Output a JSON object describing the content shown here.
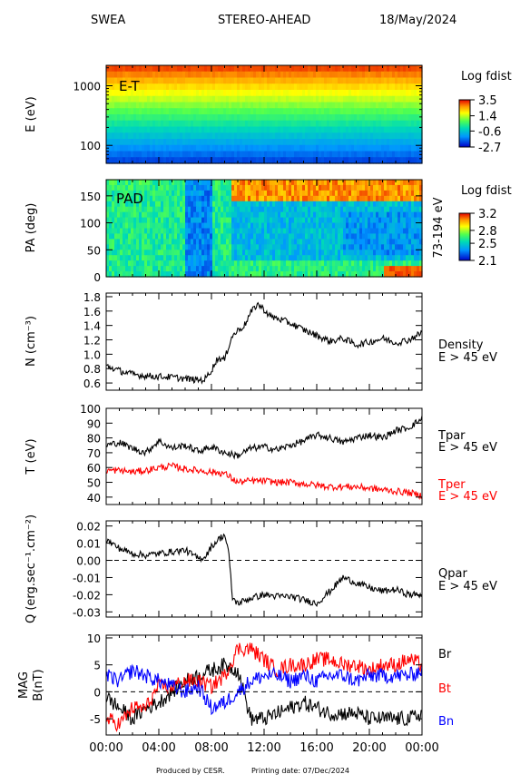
{
  "header": {
    "instrument": "SWEA",
    "spacecraft": "STEREO-AHEAD",
    "date": "18/May/2024"
  },
  "footer": {
    "produced_by": "Produced by CESR.",
    "printing_date": "Printing date: 07/Dec/2024"
  },
  "colors": {
    "black": "#000000",
    "red": "#ff0000",
    "blue": "#0000ff"
  },
  "time_axis": {
    "range_hours": [
      0,
      24
    ],
    "tick_labels": [
      "00:00",
      "04:00",
      "08:00",
      "12:00",
      "16:00",
      "20:00",
      "00:00"
    ]
  },
  "chart_data": [
    {
      "type": "heatmap",
      "panel_label": "E-T",
      "ylabel": "E (eV)",
      "yscale": "log",
      "ylim": [
        50,
        2200
      ],
      "y_tick_labels": [
        "1000",
        "100"
      ],
      "colorbar_title": "Log fdist",
      "colorbar_ticks": [
        "3.5",
        "1.4",
        "-0.6",
        "-2.7"
      ],
      "colorbar_range": [
        -2.7,
        3.5
      ]
    },
    {
      "type": "heatmap",
      "panel_label": "PAD",
      "ylabel": "PA (deg)",
      "ylim": [
        0,
        180
      ],
      "y_tick_labels": [
        "150",
        "100",
        "50",
        "0"
      ],
      "right_label": "73-194 eV",
      "colorbar_title": "Log fdist",
      "colorbar_ticks": [
        "3.2",
        "2.8",
        "2.5",
        "2.1"
      ],
      "colorbar_range": [
        2.1,
        3.2
      ]
    },
    {
      "type": "line",
      "ylabel": "N (cm⁻³)",
      "ylim": [
        0.5,
        1.85
      ],
      "y_tick_labels": [
        "1.8",
        "1.6",
        "1.4",
        "1.2",
        "1.0",
        "0.8",
        "0.6"
      ],
      "series": [
        {
          "name": "Density",
          "sublabel": "E > 45 eV",
          "color": "#000000",
          "x": [
            0,
            1,
            2,
            3,
            4,
            5,
            6,
            7,
            7.5,
            8,
            8.5,
            9,
            9.5,
            10,
            10.5,
            11,
            11.5,
            12,
            12.5,
            13,
            14,
            15,
            16,
            17,
            18,
            19,
            20,
            21,
            22,
            23,
            24
          ],
          "y": [
            0.84,
            0.77,
            0.72,
            0.7,
            0.69,
            0.68,
            0.66,
            0.64,
            0.65,
            0.78,
            0.95,
            0.92,
            1.23,
            1.33,
            1.4,
            1.58,
            1.7,
            1.62,
            1.52,
            1.5,
            1.43,
            1.34,
            1.26,
            1.18,
            1.22,
            1.13,
            1.17,
            1.22,
            1.16,
            1.2,
            1.3
          ]
        }
      ]
    },
    {
      "type": "line",
      "ylabel": "T (eV)",
      "ylim": [
        35,
        100
      ],
      "y_tick_labels": [
        "100",
        "90",
        "80",
        "70",
        "60",
        "50",
        "40"
      ],
      "series": [
        {
          "name": "Tpar",
          "sublabel": "E > 45 eV",
          "color": "#000000",
          "x": [
            0,
            1,
            2,
            3,
            4,
            5,
            6,
            7,
            8,
            9,
            10,
            11,
            12,
            13,
            14,
            15,
            16,
            17,
            18,
            19,
            20,
            21,
            22,
            23,
            24
          ],
          "y": [
            75,
            77,
            73,
            70,
            78,
            73,
            75,
            71,
            74,
            70,
            68,
            73,
            74,
            72,
            75,
            78,
            82,
            80,
            77,
            80,
            82,
            80,
            85,
            87,
            93
          ]
        },
        {
          "name": "Tper",
          "sublabel": "E > 45 eV",
          "color": "#ff0000",
          "x": [
            0,
            1,
            2,
            3,
            4,
            5,
            6,
            7,
            8,
            9,
            10,
            11,
            12,
            13,
            14,
            15,
            16,
            17,
            18,
            19,
            20,
            21,
            22,
            23,
            24
          ],
          "y": [
            58,
            58,
            57,
            58,
            60,
            61,
            59,
            58,
            57,
            56,
            50,
            51,
            51,
            50,
            50,
            49,
            48,
            47,
            47,
            47,
            46,
            45,
            44,
            43,
            41
          ]
        }
      ]
    },
    {
      "type": "line",
      "ylabel": "Q (erg.sec⁻¹.cm⁻²)",
      "ylim": [
        -0.033,
        0.023
      ],
      "y_tick_labels": [
        "0.02",
        "0.01",
        "0.00",
        "-0.01",
        "-0.02",
        "-0.03"
      ],
      "reference_line": 0,
      "series": [
        {
          "name": "Qpar",
          "sublabel": "E > 45 eV",
          "color": "#000000",
          "x": [
            0,
            1,
            2,
            3,
            4,
            5,
            6,
            7,
            7.5,
            8,
            8.5,
            9,
            9.3,
            9.6,
            10,
            11,
            12,
            13,
            14,
            15,
            16,
            17,
            18,
            19,
            20,
            21,
            22,
            23,
            24
          ],
          "y": [
            0.012,
            0.007,
            0.004,
            0.003,
            0.004,
            0.005,
            0.006,
            0.001,
            0.002,
            0.008,
            0.012,
            0.015,
            0.005,
            -0.022,
            -0.025,
            -0.022,
            -0.02,
            -0.021,
            -0.021,
            -0.023,
            -0.025,
            -0.018,
            -0.01,
            -0.013,
            -0.016,
            -0.018,
            -0.017,
            -0.02,
            -0.02
          ]
        }
      ]
    },
    {
      "type": "line",
      "ylabel": "MAG B(nT)",
      "ylim": [
        -8,
        10.5
      ],
      "y_tick_labels": [
        "10",
        "5",
        "0",
        "-5"
      ],
      "reference_line": 0,
      "series": [
        {
          "name": "Br",
          "color": "#000000",
          "x": [
            0,
            1,
            2,
            3,
            4,
            5,
            6,
            7,
            8,
            9,
            10,
            11,
            12,
            13,
            14,
            15,
            16,
            17,
            18,
            19,
            20,
            21,
            22,
            23,
            24
          ],
          "y": [
            -1,
            -3,
            -5,
            -3,
            -2,
            0,
            2,
            3,
            4,
            5,
            4,
            -5,
            -5,
            -4,
            -3,
            -2,
            -3,
            -4,
            -4,
            -4,
            -5,
            -5,
            -5,
            -5,
            -4
          ]
        },
        {
          "name": "Bt",
          "color": "#ff0000",
          "x": [
            0,
            1,
            2,
            3,
            4,
            5,
            6,
            7,
            8,
            9,
            10,
            11,
            12,
            13,
            14,
            15,
            16,
            17,
            18,
            19,
            20,
            21,
            22,
            23,
            24
          ],
          "y": [
            -5,
            -6,
            -3,
            -3,
            1,
            1,
            2,
            2,
            1,
            3,
            8,
            8,
            6,
            4,
            5,
            5,
            6,
            6,
            5,
            5,
            4,
            5,
            5,
            6,
            5
          ]
        },
        {
          "name": "Bn",
          "color": "#0000ff",
          "x": [
            0,
            1,
            2,
            3,
            4,
            5,
            6,
            7,
            8,
            9,
            10,
            11,
            12,
            13,
            14,
            15,
            16,
            17,
            18,
            19,
            20,
            21,
            22,
            23,
            24
          ],
          "y": [
            3,
            2,
            4,
            3,
            2,
            1,
            0,
            1,
            -3,
            -2,
            0,
            2,
            3,
            3,
            2,
            3,
            2,
            3,
            3,
            2,
            3,
            3,
            3,
            3,
            4
          ]
        }
      ]
    }
  ]
}
